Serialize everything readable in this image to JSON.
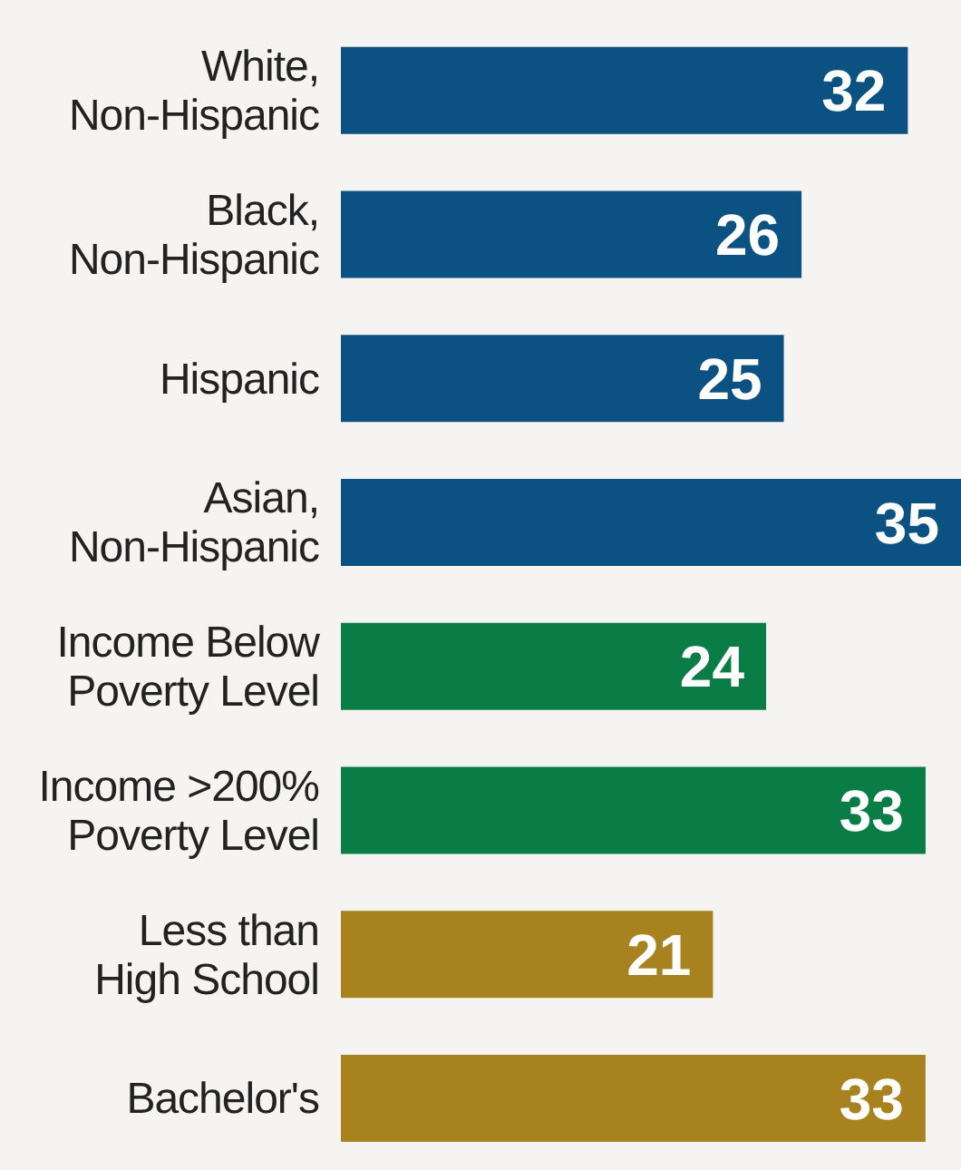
{
  "chart_data": {
    "type": "bar",
    "orientation": "horizontal",
    "categories": [
      "White,\nNon-Hispanic",
      "Black,\nNon-Hispanic",
      "Hispanic",
      "Asian,\nNon-Hispanic",
      "Income Below\nPoverty Level",
      "Income >200%\nPoverty Level",
      "Less than\nHigh School",
      "Bachelor's"
    ],
    "values": [
      32,
      26,
      25,
      35,
      24,
      33,
      21,
      33
    ],
    "colors": [
      "#0b5283",
      "#0b5283",
      "#0b5283",
      "#0b5283",
      "#0a7d46",
      "#0a7d46",
      "#a7821e",
      "#a7821e"
    ],
    "xlim": [
      0,
      35
    ],
    "tick_labels": "y",
    "data_labels": true
  }
}
